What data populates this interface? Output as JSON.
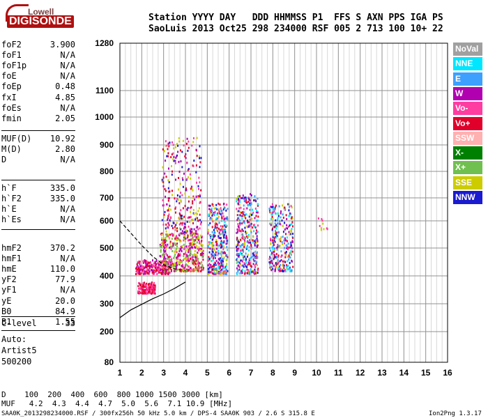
{
  "logo": {
    "line1": "Lowell",
    "line2": "DIGISONDE"
  },
  "header": {
    "row1": "Station YYYY DAY   DDD HHMMSS P1  FFS S AXN PPS IGA PS",
    "row2": "SaoLuis 2013 Oct25 298 234000 RSF 005 2 713 100 10+ 22"
  },
  "params_group1": [
    {
      "key": "foF2",
      "value": "3.900"
    },
    {
      "key": "foF1",
      "value": "N/A"
    },
    {
      "key": "foF1p",
      "value": "N/A"
    },
    {
      "key": "foE",
      "value": "N/A"
    },
    {
      "key": "foEp",
      "value": "0.48"
    },
    {
      "key": "fxI",
      "value": "4.85"
    },
    {
      "key": "foEs",
      "value": "N/A"
    },
    {
      "key": "fmin",
      "value": "2.05"
    }
  ],
  "params_group2": [
    {
      "key": "MUF(D)",
      "value": "10.92"
    },
    {
      "key": "M(D)",
      "value": "2.80"
    },
    {
      "key": "D",
      "value": "N/A"
    }
  ],
  "params_group3": [
    {
      "key": "h`F",
      "value": "335.0"
    },
    {
      "key": "h`F2",
      "value": "335.0"
    },
    {
      "key": "h`E",
      "value": "N/A"
    },
    {
      "key": "h`Es",
      "value": "N/A"
    }
  ],
  "params_group4": [
    {
      "key": "hmF2",
      "value": "370.2"
    },
    {
      "key": "hmF1",
      "value": "N/A"
    },
    {
      "key": "hmE",
      "value": "110.0"
    },
    {
      "key": "yF2",
      "value": "77.9"
    },
    {
      "key": "yF1",
      "value": "N/A"
    },
    {
      "key": "yE",
      "value": "20.0"
    },
    {
      "key": "B0",
      "value": "84.9"
    },
    {
      "key": "B1",
      "value": "1.55"
    }
  ],
  "clevel": {
    "key": "C-level",
    "value": "33"
  },
  "auto": {
    "line1": "Auto:",
    "line2": "Artist5",
    "line3": "500200"
  },
  "legend": [
    {
      "label": "NoVal",
      "color": "#a0a0a0"
    },
    {
      "label": "NNE",
      "color": "#00e6ff"
    },
    {
      "label": "E",
      "color": "#3da0ff"
    },
    {
      "label": "W",
      "color": "#b000b0"
    },
    {
      "label": "Vo-",
      "color": "#ff3ca0"
    },
    {
      "label": "Vo+",
      "color": "#e0002a"
    },
    {
      "label": "SSW",
      "color": "#ffb0b0"
    },
    {
      "label": "X-",
      "color": "#008000"
    },
    {
      "label": "X+",
      "color": "#70c050"
    },
    {
      "label": "SSE",
      "color": "#cccc00"
    },
    {
      "label": "NNW",
      "color": "#1a1ad0"
    }
  ],
  "footer": {
    "d_row": "D    100  200  400  600  800 1000 1500 3000 [km]",
    "muf_row": "MUF   4.2  4.3  4.4  4.7  5.0  5.6  7.1 10.9 [MHz]",
    "file_line": "SAA0K_2013298234000.RSF / 300fx256h 50 kHz 5.0 km / DPS-4 SAA0K 903 / 2.6 S 315.8 E",
    "version": "Ion2Png 1.3.17"
  },
  "chart_data": {
    "type": "scatter",
    "title": "",
    "xlabel": "",
    "ylabel": "",
    "xlim": [
      1,
      16
    ],
    "ylim": [
      80,
      1280
    ],
    "x_ticks": [
      1,
      2,
      3,
      4,
      5,
      6,
      7,
      8,
      9,
      10,
      11,
      12,
      13,
      14,
      15,
      16
    ],
    "y_ticks": [
      80,
      200,
      300,
      400,
      500,
      600,
      700,
      800,
      900,
      1000,
      1100,
      1280
    ],
    "clusters": [
      {
        "x": [
          1.8,
          2.6
        ],
        "y": [
          340,
          380
        ],
        "colors": [
          "Vo+",
          "Vo-"
        ],
        "count": 160
      },
      {
        "x": [
          1.7,
          3.3
        ],
        "y": [
          410,
          460
        ],
        "colors": [
          "Vo+",
          "Vo-",
          "W"
        ],
        "count": 220
      },
      {
        "x": [
          2.8,
          4.8
        ],
        "y": [
          420,
          560
        ],
        "colors": [
          "SSE",
          "W",
          "Vo-",
          "Vo+",
          "X+"
        ],
        "count": 500
      },
      {
        "x": [
          2.9,
          4.7
        ],
        "y": [
          560,
          930
        ],
        "colors": [
          "SSE",
          "W",
          "Vo-",
          "NNW",
          "Vo+"
        ],
        "count": 280
      },
      {
        "x": [
          5.0,
          5.9
        ],
        "y": [
          410,
          680
        ],
        "colors": [
          "NNW",
          "W",
          "Vo-",
          "SSE",
          "NNE",
          "E",
          "Vo+"
        ],
        "count": 380
      },
      {
        "x": [
          6.3,
          7.3
        ],
        "y": [
          410,
          720
        ],
        "colors": [
          "W",
          "Vo-",
          "NNW",
          "SSE",
          "NNE",
          "E",
          "Vo+"
        ],
        "count": 380
      },
      {
        "x": [
          7.8,
          8.9
        ],
        "y": [
          420,
          680
        ],
        "colors": [
          "NNW",
          "E",
          "W",
          "Vo-",
          "NNE",
          "SSE",
          "Vo+"
        ],
        "count": 300
      },
      {
        "x": [
          10.0,
          10.5
        ],
        "y": [
          570,
          620
        ],
        "colors": [
          "SSE",
          "Vo-"
        ],
        "count": 10
      }
    ],
    "curves": [
      {
        "name": "",
        "style": "solid",
        "x": [
          1.0,
          1.5,
          2.0,
          2.5,
          3.0,
          3.5,
          4.0
        ],
        "y": [
          250,
          278,
          298,
          318,
          335,
          355,
          378
        ]
      },
      {
        "name": "",
        "style": "dashed",
        "x": [
          1.0,
          1.5,
          2.0,
          2.5,
          3.0,
          3.5,
          4.0
        ],
        "y": [
          600,
          555,
          510,
          470,
          440,
          425,
          420
        ]
      }
    ]
  }
}
